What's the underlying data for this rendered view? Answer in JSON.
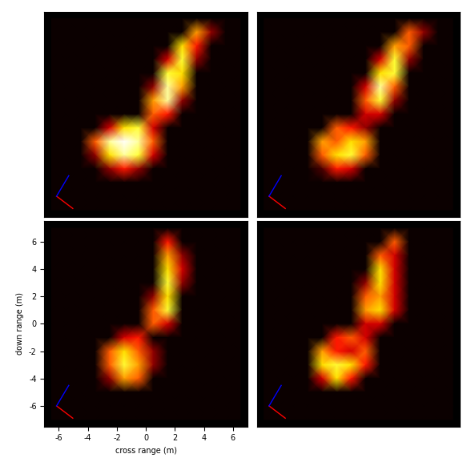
{
  "chart_data": [
    {
      "type": "heatmap",
      "tick_labels": false,
      "xlim": [
        -7,
        7
      ],
      "ylim": [
        -7.5,
        7.5
      ],
      "value_range": [
        0,
        1
      ],
      "x": [
        -6.5,
        -5.5,
        -4.5,
        -3.5,
        -2.5,
        -1.5,
        -0.5,
        0.5,
        1.5,
        2.5,
        3.5,
        4.5,
        5.5,
        6.5
      ],
      "y": [
        7,
        6,
        5,
        4,
        3,
        2,
        1,
        0,
        -1,
        -2,
        -3,
        -4,
        -5,
        -6,
        -7
      ],
      "cells": [
        [
          0,
          0,
          0,
          0,
          0,
          0,
          0,
          0,
          0,
          0,
          0,
          0,
          0,
          0
        ],
        [
          0,
          0,
          0,
          0,
          0,
          0,
          0,
          0,
          0,
          0,
          0.6,
          0.2,
          0,
          0
        ],
        [
          0,
          0,
          0,
          0,
          0,
          0,
          0,
          0,
          0,
          0.7,
          0.4,
          0,
          0,
          0
        ],
        [
          0,
          0,
          0,
          0,
          0,
          0,
          0,
          0,
          0.3,
          0.8,
          0.2,
          0,
          0,
          0
        ],
        [
          0,
          0,
          0,
          0,
          0,
          0,
          0,
          0,
          0.8,
          0.7,
          0,
          0,
          0,
          0
        ],
        [
          0,
          0,
          0,
          0,
          0,
          0,
          0,
          0.2,
          0.9,
          0.6,
          0,
          0,
          0,
          0
        ],
        [
          0,
          0,
          0,
          0,
          0,
          0,
          0,
          0.6,
          0.9,
          0.2,
          0,
          0,
          0,
          0
        ],
        [
          0,
          0,
          0,
          0,
          0,
          0,
          0,
          0.5,
          0.4,
          0,
          0,
          0,
          0,
          0
        ],
        [
          0,
          0,
          0,
          0,
          0.3,
          0.7,
          0.8,
          0.3,
          0,
          0,
          0,
          0,
          0,
          0
        ],
        [
          0,
          0,
          0,
          0.5,
          0.9,
          1.0,
          0.9,
          0.5,
          0,
          0,
          0,
          0,
          0,
          0
        ],
        [
          0,
          0,
          0,
          0.2,
          0.7,
          0.9,
          0.8,
          0.3,
          0,
          0,
          0,
          0,
          0,
          0
        ],
        [
          0,
          0,
          0,
          0,
          0.2,
          0.4,
          0.2,
          0,
          0,
          0,
          0,
          0,
          0,
          0
        ],
        [
          0,
          0,
          0,
          0,
          0,
          0,
          0,
          0,
          0,
          0,
          0,
          0,
          0,
          0
        ],
        [
          0,
          0,
          0,
          0,
          0,
          0,
          0,
          0,
          0,
          0,
          0,
          0,
          0,
          0
        ],
        [
          0,
          0,
          0,
          0,
          0,
          0,
          0,
          0,
          0,
          0,
          0,
          0,
          0,
          0
        ]
      ]
    },
    {
      "type": "heatmap",
      "tick_labels": false,
      "xlim": [
        -7,
        7
      ],
      "ylim": [
        -7.5,
        7.5
      ],
      "value_range": [
        0,
        1
      ],
      "x": [
        -6.5,
        -5.5,
        -4.5,
        -3.5,
        -2.5,
        -1.5,
        -0.5,
        0.5,
        1.5,
        2.5,
        3.5,
        4.5,
        5.5,
        6.5
      ],
      "y": [
        7,
        6,
        5,
        4,
        3,
        2,
        1,
        0,
        -1,
        -2,
        -3,
        -4,
        -5,
        -6,
        -7
      ],
      "cells": [
        [
          0,
          0,
          0,
          0,
          0,
          0,
          0,
          0,
          0,
          0,
          0,
          0,
          0,
          0
        ],
        [
          0,
          0,
          0,
          0,
          0,
          0,
          0,
          0,
          0,
          0,
          0.5,
          0.2,
          0,
          0
        ],
        [
          0,
          0,
          0,
          0,
          0,
          0,
          0,
          0,
          0,
          0.6,
          0.5,
          0,
          0,
          0
        ],
        [
          0,
          0,
          0,
          0,
          0,
          0,
          0,
          0,
          0.3,
          0.8,
          0.2,
          0,
          0,
          0
        ],
        [
          0,
          0,
          0,
          0,
          0,
          0,
          0,
          0,
          0.7,
          0.8,
          0,
          0,
          0,
          0
        ],
        [
          0,
          0,
          0,
          0,
          0,
          0,
          0,
          0.3,
          0.9,
          0.5,
          0,
          0,
          0,
          0
        ],
        [
          0,
          0,
          0,
          0,
          0,
          0,
          0,
          0.5,
          0.8,
          0.2,
          0,
          0,
          0,
          0
        ],
        [
          0,
          0,
          0,
          0,
          0,
          0,
          0,
          0.3,
          0.3,
          0,
          0,
          0,
          0,
          0
        ],
        [
          0,
          0,
          0,
          0,
          0,
          0.5,
          0.4,
          0.2,
          0,
          0,
          0,
          0,
          0,
          0
        ],
        [
          0,
          0,
          0,
          0,
          0.6,
          0.5,
          0.7,
          0.6,
          0,
          0,
          0,
          0,
          0,
          0
        ],
        [
          0,
          0,
          0,
          0,
          0.5,
          0.7,
          0.8,
          0.5,
          0,
          0,
          0,
          0,
          0,
          0
        ],
        [
          0,
          0,
          0,
          0,
          0.1,
          0.4,
          0.3,
          0,
          0,
          0,
          0,
          0,
          0,
          0
        ],
        [
          0,
          0,
          0,
          0,
          0,
          0,
          0,
          0,
          0,
          0,
          0,
          0,
          0,
          0
        ],
        [
          0,
          0,
          0,
          0,
          0,
          0,
          0,
          0,
          0,
          0,
          0,
          0,
          0,
          0
        ],
        [
          0,
          0,
          0,
          0,
          0,
          0,
          0,
          0,
          0,
          0,
          0,
          0,
          0,
          0
        ]
      ]
    },
    {
      "type": "heatmap",
      "xlabel": "cross range (m)",
      "ylabel": "down range (m)",
      "xlim": [
        -7,
        7
      ],
      "ylim": [
        -7.5,
        7.5
      ],
      "value_range": [
        0,
        1
      ],
      "xticks": [
        -6,
        -4,
        -2,
        0,
        2,
        4,
        6
      ],
      "yticks": [
        -6,
        -4,
        -2,
        0,
        2,
        4,
        6
      ],
      "x": [
        -6.5,
        -5.5,
        -4.5,
        -3.5,
        -2.5,
        -1.5,
        -0.5,
        0.5,
        1.5,
        2.5,
        3.5,
        4.5,
        5.5,
        6.5
      ],
      "y": [
        7,
        6,
        5,
        4,
        3,
        2,
        1,
        0,
        -1,
        -2,
        -3,
        -4,
        -5,
        -6,
        -7
      ],
      "cells": [
        [
          0,
          0,
          0,
          0,
          0,
          0,
          0,
          0,
          0,
          0,
          0,
          0,
          0,
          0
        ],
        [
          0,
          0,
          0,
          0,
          0,
          0,
          0,
          0,
          0.4,
          0,
          0,
          0,
          0,
          0
        ],
        [
          0,
          0,
          0,
          0,
          0,
          0,
          0,
          0,
          0.6,
          0.2,
          0,
          0,
          0,
          0
        ],
        [
          0,
          0,
          0,
          0,
          0,
          0,
          0,
          0,
          0.7,
          0.3,
          0,
          0,
          0,
          0
        ],
        [
          0,
          0,
          0,
          0,
          0,
          0,
          0,
          0,
          0.8,
          0.2,
          0,
          0,
          0,
          0
        ],
        [
          0,
          0,
          0,
          0,
          0,
          0,
          0,
          0.2,
          0.7,
          0,
          0,
          0,
          0,
          0
        ],
        [
          0,
          0,
          0,
          0,
          0,
          0,
          0,
          0.5,
          0.8,
          0,
          0,
          0,
          0,
          0
        ],
        [
          0,
          0,
          0,
          0,
          0,
          0,
          0,
          0.5,
          0.3,
          0,
          0,
          0,
          0,
          0
        ],
        [
          0,
          0,
          0,
          0,
          0,
          0.3,
          0.4,
          0,
          0,
          0,
          0,
          0,
          0,
          0
        ],
        [
          0,
          0,
          0,
          0,
          0.5,
          0.7,
          0.5,
          0.2,
          0,
          0,
          0,
          0,
          0,
          0
        ],
        [
          0,
          0,
          0,
          0,
          0.5,
          0.8,
          0.6,
          0.2,
          0,
          0,
          0,
          0,
          0,
          0
        ],
        [
          0,
          0,
          0,
          0,
          0.2,
          0.6,
          0.5,
          0,
          0,
          0,
          0,
          0,
          0,
          0
        ],
        [
          0,
          0,
          0,
          0,
          0,
          0,
          0,
          0,
          0,
          0,
          0,
          0,
          0,
          0
        ],
        [
          0,
          0,
          0,
          0,
          0,
          0,
          0,
          0,
          0,
          0,
          0,
          0,
          0,
          0
        ],
        [
          0,
          0,
          0,
          0,
          0,
          0,
          0,
          0,
          0,
          0,
          0,
          0,
          0,
          0
        ]
      ]
    },
    {
      "type": "heatmap",
      "tick_labels": false,
      "xlim": [
        -7,
        7
      ],
      "ylim": [
        -7.5,
        7.5
      ],
      "value_range": [
        0,
        1
      ],
      "x": [
        -6.5,
        -5.5,
        -4.5,
        -3.5,
        -2.5,
        -1.5,
        -0.5,
        0.5,
        1.5,
        2.5,
        3.5,
        4.5,
        5.5,
        6.5
      ],
      "y": [
        7,
        6,
        5,
        4,
        3,
        2,
        1,
        0,
        -1,
        -2,
        -3,
        -4,
        -5,
        -6,
        -7
      ],
      "cells": [
        [
          0,
          0,
          0,
          0,
          0,
          0,
          0,
          0,
          0,
          0,
          0,
          0,
          0,
          0
        ],
        [
          0,
          0,
          0,
          0,
          0,
          0,
          0,
          0,
          0,
          0.5,
          0,
          0,
          0,
          0
        ],
        [
          0,
          0,
          0,
          0,
          0,
          0,
          0,
          0,
          0.5,
          0.3,
          0,
          0,
          0,
          0
        ],
        [
          0,
          0,
          0,
          0,
          0,
          0,
          0,
          0,
          0.7,
          0.3,
          0,
          0,
          0,
          0
        ],
        [
          0,
          0,
          0,
          0,
          0,
          0,
          0,
          0.2,
          0.7,
          0.3,
          0,
          0,
          0,
          0
        ],
        [
          0,
          0,
          0,
          0,
          0,
          0,
          0,
          0.5,
          0.6,
          0.3,
          0,
          0,
          0,
          0
        ],
        [
          0,
          0,
          0,
          0,
          0,
          0,
          0,
          0.6,
          0.7,
          0.3,
          0,
          0,
          0,
          0
        ],
        [
          0,
          0,
          0,
          0,
          0,
          0,
          0,
          0.3,
          0.3,
          0,
          0,
          0,
          0,
          0
        ],
        [
          0,
          0,
          0,
          0,
          0,
          0.4,
          0.5,
          0.3,
          0,
          0,
          0,
          0,
          0,
          0
        ],
        [
          0,
          0,
          0,
          0,
          0.6,
          0.4,
          0.3,
          0.5,
          0,
          0,
          0,
          0,
          0,
          0
        ],
        [
          0,
          0,
          0,
          0,
          0.7,
          0.8,
          0.7,
          0.4,
          0,
          0,
          0,
          0,
          0,
          0
        ],
        [
          0,
          0,
          0,
          0,
          0.3,
          0.7,
          0.4,
          0,
          0,
          0,
          0,
          0,
          0,
          0
        ],
        [
          0,
          0,
          0,
          0,
          0,
          0,
          0,
          0,
          0,
          0,
          0,
          0,
          0,
          0
        ],
        [
          0,
          0,
          0,
          0,
          0,
          0,
          0,
          0,
          0,
          0,
          0,
          0,
          0,
          0
        ],
        [
          0,
          0,
          0,
          0,
          0,
          0,
          0,
          0,
          0,
          0,
          0,
          0,
          0,
          0
        ]
      ]
    }
  ]
}
